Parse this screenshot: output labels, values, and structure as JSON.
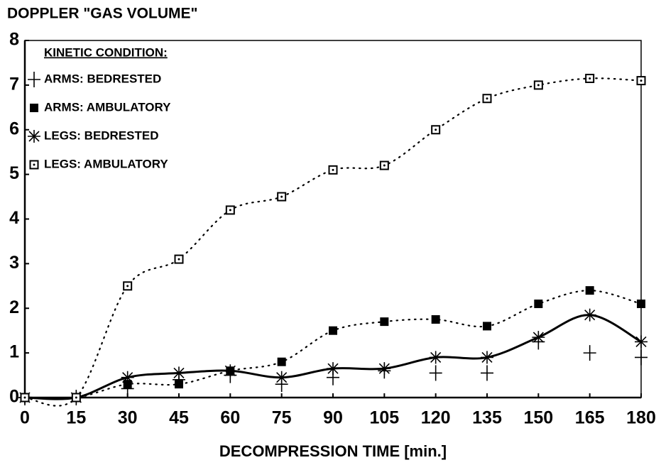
{
  "chart_data": {
    "type": "line",
    "title": "DOPPLER \"GAS VOLUME\"",
    "x_label": "DECOMPRESSION TIME [min.]",
    "legend_title": "KINETIC CONDITION:",
    "legend": "upper left",
    "grid": false,
    "x": [
      0,
      15,
      30,
      45,
      60,
      75,
      90,
      105,
      120,
      135,
      150,
      165,
      180
    ],
    "xlim": [
      0,
      180
    ],
    "xticks": [
      0,
      15,
      30,
      45,
      60,
      75,
      90,
      105,
      120,
      135,
      150,
      165,
      180
    ],
    "ylim": [
      0,
      8
    ],
    "yticks": [
      0,
      1,
      2,
      3,
      4,
      5,
      6,
      7,
      8
    ],
    "series": [
      {
        "name": "ARMS: BEDRESTED",
        "color": "#000000",
        "marker": "plus",
        "line_style": "none",
        "values": [
          0,
          0,
          0.2,
          0.4,
          0.5,
          0.3,
          0.45,
          0.6,
          0.55,
          0.55,
          1.25,
          1.0,
          0.9
        ]
      },
      {
        "name": "ARMS: AMBULATORY",
        "color": "#000000",
        "marker": "filled-square",
        "line_style": "dotted",
        "values": [
          0,
          0,
          0.3,
          0.3,
          0.6,
          0.8,
          1.5,
          1.7,
          1.75,
          1.6,
          2.1,
          2.4,
          2.1
        ]
      },
      {
        "name": "LEGS: BEDRESTED",
        "color": "#000000",
        "marker": "asterisk",
        "line_style": "solid",
        "values": [
          0,
          0,
          0.45,
          0.55,
          0.6,
          0.45,
          0.65,
          0.65,
          0.9,
          0.9,
          1.35,
          1.85,
          1.25
        ]
      },
      {
        "name": "LEGS: AMBULATORY",
        "color": "#000000",
        "marker": "open-square",
        "line_style": "dotted",
        "values": [
          0,
          0,
          2.5,
          3.1,
          4.2,
          4.5,
          5.1,
          5.2,
          6.0,
          6.7,
          7.0,
          7.15,
          7.1
        ]
      }
    ]
  }
}
